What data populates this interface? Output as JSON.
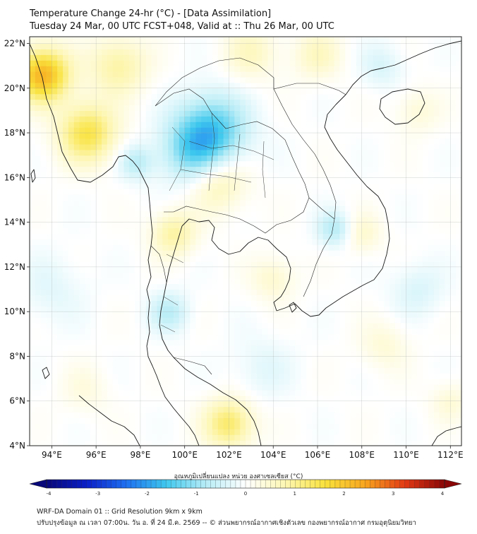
{
  "title": {
    "line1": "Temperature Change 24-hr (°C) - [Data Assimilation]",
    "line2": "Tuesday 24 Mar, 00 UTC FCST+048, Valid at :: Thu 26 Mar, 00 UTC"
  },
  "map": {
    "lat_labels": [
      "22°N",
      "20°N",
      "18°N",
      "16°N",
      "14°N",
      "12°N",
      "10°N",
      "8°N",
      "6°N",
      "4°N"
    ],
    "lat_values": [
      22,
      20,
      18,
      16,
      14,
      12,
      10,
      8,
      6,
      4
    ],
    "lon_labels": [
      "94°E",
      "96°E",
      "98°E",
      "100°E",
      "102°E",
      "104°E",
      "106°E",
      "108°E",
      "110°E",
      "112°E"
    ],
    "lon_values": [
      94,
      96,
      98,
      100,
      102,
      104,
      106,
      108,
      110,
      112
    ],
    "lat_range": [
      4,
      22.3
    ],
    "lon_range": [
      93,
      112.5
    ],
    "anomalies": [
      {
        "lon": 101.2,
        "lat": 18.1,
        "value": -1.5,
        "spread": 1.6
      },
      {
        "lon": 100.3,
        "lat": 17.1,
        "value": -0.9,
        "spread": 1.4
      },
      {
        "lon": 97.8,
        "lat": 16.7,
        "value": -0.7,
        "spread": 0.8
      },
      {
        "lon": 106.8,
        "lat": 13.7,
        "value": -0.8,
        "spread": 0.8
      },
      {
        "lon": 99.3,
        "lat": 10.0,
        "value": -0.7,
        "spread": 0.9
      },
      {
        "lon": 108.9,
        "lat": 21.0,
        "value": -0.4,
        "spread": 1.0
      },
      {
        "lon": 110.5,
        "lat": 11.0,
        "value": -0.4,
        "spread": 1.2
      },
      {
        "lon": 103.5,
        "lat": 7.5,
        "value": -0.3,
        "spread": 1.4
      },
      {
        "lon": 94.0,
        "lat": 11.0,
        "value": -0.3,
        "spread": 1.5
      },
      {
        "lon": 93.6,
        "lat": 20.6,
        "value": 2.2,
        "spread": 1.2
      },
      {
        "lon": 95.6,
        "lat": 18.0,
        "value": 1.5,
        "spread": 1.3
      },
      {
        "lon": 102.0,
        "lat": 5.0,
        "value": 1.3,
        "spread": 1.1
      },
      {
        "lon": 101.5,
        "lat": 15.8,
        "value": 0.8,
        "spread": 1.3
      },
      {
        "lon": 99.5,
        "lat": 13.5,
        "value": 0.9,
        "spread": 1.0
      },
      {
        "lon": 97.0,
        "lat": 21.0,
        "value": 0.9,
        "spread": 1.3
      },
      {
        "lon": 103.0,
        "lat": 21.6,
        "value": 0.6,
        "spread": 1.2
      },
      {
        "lon": 106.0,
        "lat": 21.5,
        "value": 0.6,
        "spread": 1.1
      },
      {
        "lon": 110.5,
        "lat": 19.0,
        "value": 0.4,
        "spread": 1.0
      },
      {
        "lon": 108.0,
        "lat": 13.5,
        "value": 0.5,
        "spread": 0.9
      },
      {
        "lon": 104.0,
        "lat": 11.5,
        "value": 0.5,
        "spread": 1.0
      },
      {
        "lon": 109.0,
        "lat": 8.5,
        "value": 0.4,
        "spread": 1.1
      },
      {
        "lon": 112.0,
        "lat": 6.0,
        "value": 0.4,
        "spread": 0.9
      },
      {
        "lon": 95.5,
        "lat": 6.5,
        "value": 0.3,
        "spread": 1.1
      }
    ]
  },
  "colorbar": {
    "label": "อุณหภูมิเปลี่ยนแปลง หน่วย องศาเซลเซียส (°C)",
    "min": -4,
    "max": 4,
    "tick_labels": [
      "-4",
      "-3",
      "-2",
      "-1",
      "0",
      "1",
      "2",
      "3",
      "4"
    ],
    "tick_values": [
      -4,
      -3,
      -2,
      -1,
      0,
      1,
      2,
      3,
      4
    ],
    "colors": [
      "#08087a",
      "#0b1fc8",
      "#1d6ff0",
      "#3ec8ee",
      "#b6ecf6",
      "#ffffff",
      "#fdf6b2",
      "#f9e23c",
      "#f8a51e",
      "#e23a14",
      "#8a0606"
    ]
  },
  "footer": {
    "line1": "WRF-DA Domain 01 :: Grid Resolution 9km x 9km",
    "line2": "ปรับปรุงข้อมูล ณ เวลา 07:00น. วัน อ. ที่ 24 มี.ค. 2569 -- © ส่วนพยากรณ์อากาศเชิงตัวเลข กองพยากรณ์อากาศ กรมอุตุนิยมวิทยา"
  }
}
